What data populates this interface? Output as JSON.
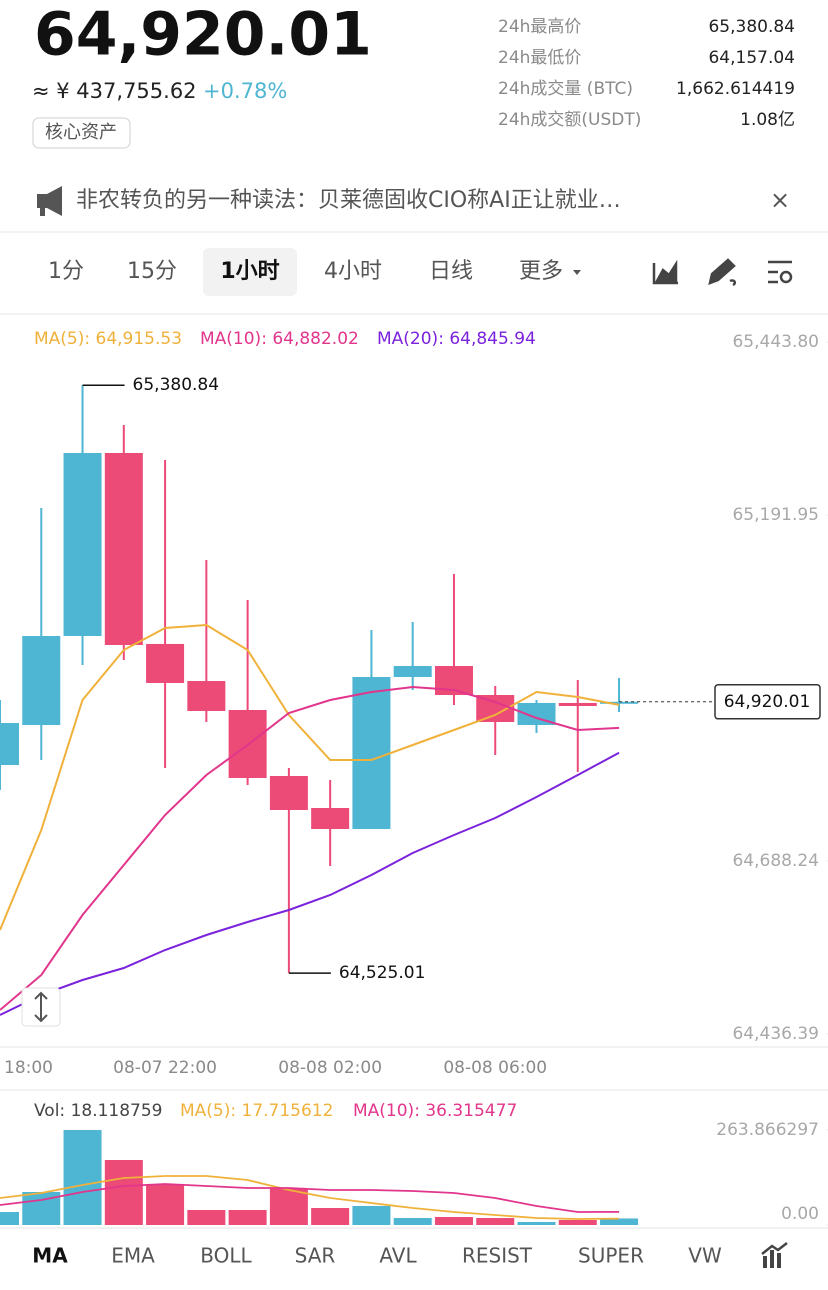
{
  "header": {
    "price": "64,920.01",
    "cny": "≈ ¥ 437,755.62",
    "change": "+0.78%",
    "tag": "核心资产",
    "stats": [
      {
        "label": "24h最高价",
        "value": "65,380.84"
      },
      {
        "label": "24h最低价",
        "value": "64,157.04"
      },
      {
        "label": "24h成交量 (BTC)",
        "value": "1,662.614419"
      },
      {
        "label": "24h成交额(USDT)",
        "value": "1.08亿"
      }
    ]
  },
  "news": {
    "text": "非农转负的另一种读法：贝莱德固收CIO称AI正让就业…",
    "close": "×"
  },
  "tabs": [
    "1分",
    "15分",
    "1小时",
    "4小时",
    "日线",
    "更多"
  ],
  "selected_tab": 2,
  "indicators": [
    "MA",
    "EMA",
    "BOLL",
    "SAR",
    "AVL",
    "RESIST",
    "SUPER",
    "VW"
  ],
  "chart_data": [
    {
      "type": "candlestick",
      "categories": [
        "18:00",
        null,
        null,
        null,
        "08-07 22:00",
        null,
        null,
        null,
        "08-08 02:00",
        null,
        null,
        null,
        "08-08 06:00",
        null,
        null,
        null
      ],
      "open": [
        64828.0,
        64886.2,
        65015.8,
        65282.2,
        65004.2,
        64950.3,
        64908.1,
        64812.0,
        64765.4,
        64734.8,
        64956.1,
        64972.1,
        64929.9,
        64886.2,
        64918.3,
        64918.0
      ],
      "high": [
        64922.6,
        65202.1,
        65380.84,
        65323.0,
        65272.0,
        65126.4,
        65068.2,
        64823.6,
        64806.2,
        65024.5,
        65036.2,
        65106.0,
        64943.0,
        64922.6,
        64951.8,
        64954.6
      ],
      "low": [
        64791.6,
        64835.3,
        64973.6,
        64980.9,
        64823.6,
        64890.6,
        64798.9,
        64525.01,
        64681.0,
        64734.8,
        64937.2,
        64915.3,
        64842.6,
        64874.6,
        64817.8,
        64905.2
      ],
      "close": [
        64889.1,
        65015.8,
        65282.2,
        65002.7,
        64947.4,
        64906.6,
        64809.1,
        64762.5,
        64734.8,
        64956.1,
        64972.1,
        64929.9,
        64890.6,
        64918.3,
        64913.9,
        64920.01
      ],
      "up_color": "#4eb5d2",
      "down_color": "#ec4a77",
      "series": [
        {
          "name": "MA(5): 64,915.53",
          "color": "#f0b13a",
          "values": [
            64587.8,
            64733.4,
            64922.6,
            64995.4,
            65027.4,
            65031.8,
            64995.4,
            64900.8,
            64835.3,
            64835.3,
            64857.1,
            64879.0,
            64900.8,
            64934.3,
            64927.0,
            64915.53
          ]
        },
        {
          "name": "MA(10): 64,882.02",
          "color": "#e2358c",
          "values": [
            64471.3,
            64522.3,
            64609.6,
            64682.4,
            64755.2,
            64813.4,
            64857.1,
            64903.7,
            64922.6,
            64934.3,
            64941.5,
            64937.2,
            64919.7,
            64896.4,
            64879.0,
            64882.02
          ]
        },
        {
          "name": "MA(20): 64,845.94",
          "color": "#7b22dc",
          "values": [
            64464.0,
            64493.2,
            64515.0,
            64532.5,
            64558.7,
            64580.5,
            64599.4,
            64616.9,
            64638.7,
            64667.9,
            64699.9,
            64726.1,
            64750.8,
            64781.4,
            64813.4,
            64845.94
          ]
        }
      ],
      "ylim": [
        64436.39,
        65443.8
      ],
      "yticks": [
        {
          "value": 65443.8,
          "label": "65,443.80"
        },
        {
          "value": 65191.95,
          "label": "65,191.95"
        },
        {
          "value": 64688.24,
          "label": "64,688.24"
        },
        {
          "value": 64436.39,
          "label": "64,436.39"
        }
      ],
      "annotations": [
        {
          "value": 65380.84,
          "label": "65,380.84"
        },
        {
          "value": 64525.01,
          "label": "64,525.01"
        }
      ],
      "last_price": {
        "value": 64920.01,
        "label": "64,920.01"
      }
    },
    {
      "type": "bar",
      "title": "Vol: 18.118759",
      "values": [
        36.1,
        91.7,
        263.8,
        180.5,
        113.9,
        41.7,
        41.7,
        102.8,
        47.2,
        52.8,
        19.4,
        22.2,
        19.4,
        8.3,
        13.9,
        18.118759
      ],
      "series": [
        {
          "name": "MA(5): 17.715612",
          "color": "#f0b13a",
          "values": [
            75.0,
            88.9,
            111.1,
            130.5,
            136.1,
            136.1,
            125.0,
            97.2,
            75.0,
            61.1,
            47.2,
            36.1,
            27.8,
            19.4,
            16.7,
            17.715612
          ]
        },
        {
          "name": "MA(10): 36.315477",
          "color": "#e2358c",
          "values": [
            55.6,
            69.4,
            91.7,
            108.3,
            113.9,
            108.3,
            102.8,
            102.8,
            97.2,
            97.2,
            94.4,
            88.9,
            75.0,
            52.8,
            36.1,
            36.315477
          ]
        }
      ],
      "ylim": [
        0,
        263.866297
      ],
      "yticks": [
        {
          "value": 0,
          "label": "0.00"
        },
        263.866297
      ]
    }
  ]
}
